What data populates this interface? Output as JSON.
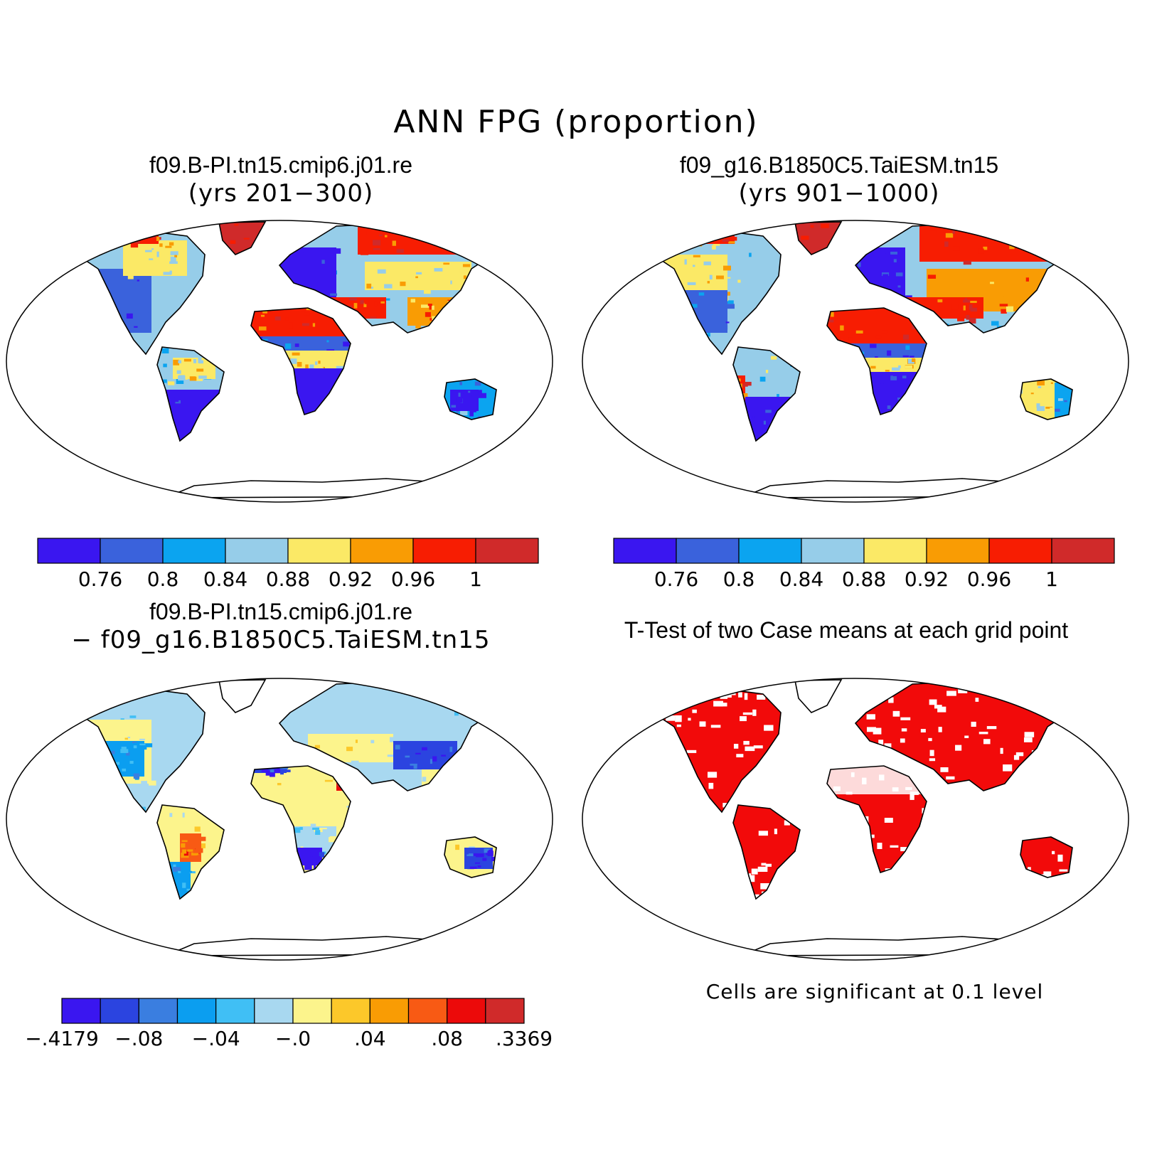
{
  "title": "ANN FPG (proportion)",
  "panels": [
    {
      "id": "case1",
      "title": "f09.B-PI.tn15.cmip6.j01.re",
      "subtitle": "(yrs 201−300)",
      "colorbar": {
        "colors": [
          "#3a16f0",
          "#3a62dc",
          "#0ba4f0",
          "#96cde9",
          "#fbe966",
          "#f99c04",
          "#f71d02",
          "#d02a2a"
        ],
        "ticks": [
          "0.76",
          "0.8",
          "0.84",
          "0.88",
          "0.92",
          "0.96",
          "1"
        ]
      }
    },
    {
      "id": "case2",
      "title": "f09_g16.B1850C5.TaiESM.tn15",
      "subtitle": "(yrs 901−1000)",
      "colorbar": {
        "colors": [
          "#3a16f0",
          "#3a62dc",
          "#0ba4f0",
          "#96cde9",
          "#fbe966",
          "#f99c04",
          "#f71d02",
          "#d02a2a"
        ],
        "ticks": [
          "0.76",
          "0.8",
          "0.84",
          "0.88",
          "0.92",
          "0.96",
          "1"
        ]
      }
    },
    {
      "id": "difference",
      "title": "f09.B-PI.tn15.cmip6.j01.re",
      "subtitle": "− f09_g16.B1850C5.TaiESM.tn15",
      "colorbar": {
        "colors": [
          "#3a16f0",
          "#2b44e0",
          "#3a7ee0",
          "#0b9ef0",
          "#40bff5",
          "#a8d8f0",
          "#fcf48c",
          "#fcc82a",
          "#f99c04",
          "#f85a14",
          "#ec0a0a",
          "#d02a2a"
        ],
        "ticks": [
          "−.4179",
          "−.08",
          "−.04",
          "−.0",
          ".04",
          ".08",
          ".3369"
        ]
      }
    },
    {
      "id": "ttest",
      "title": "T-Test of two Case means at each grid point",
      "note": "Cells are significant at 0.1 level",
      "significant_color": "#f20a0a"
    }
  ]
}
